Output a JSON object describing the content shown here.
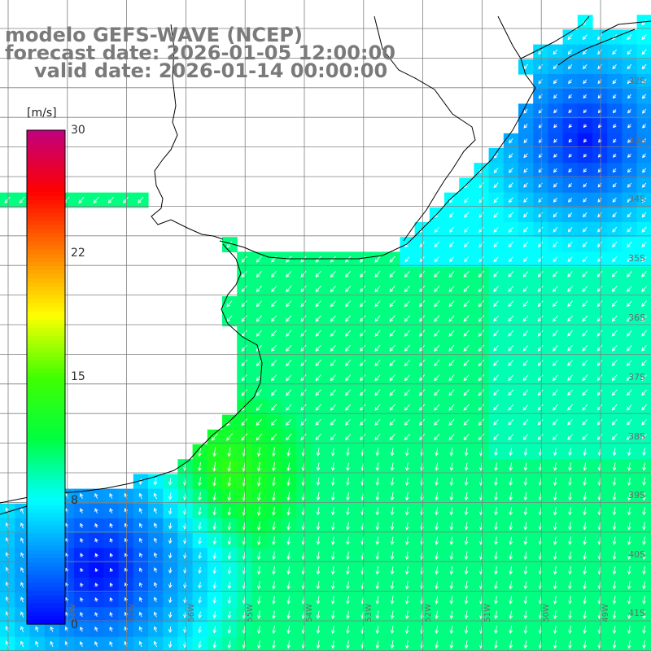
{
  "title": {
    "line1": "modelo GEFS-WAVE (NCEP)",
    "line2": "forecast date: 2026-01-05 12:00:00",
    "line3": "valid date: 2026-01-14 00:00:00"
  },
  "colorbar": {
    "unit": "[m/s]",
    "ticks": [
      "30",
      "22",
      "15",
      "8",
      "0"
    ],
    "tick_values": [
      30,
      22,
      15,
      8,
      0
    ],
    "colors": [
      "#0000ff",
      "#0080ff",
      "#00ffff",
      "#00ff40",
      "#40ff00",
      "#ffff00",
      "#ff8000",
      "#ff0000",
      "#c00080"
    ]
  },
  "lat_labels": [
    "32S",
    "33S",
    "34S",
    "35S",
    "36S",
    "37S",
    "38S",
    "39S",
    "40S",
    "41S"
  ],
  "lon_labels": [
    "58W",
    "57W",
    "56W",
    "55W",
    "54W",
    "53W",
    "52W",
    "51W",
    "50W",
    "49W"
  ],
  "map": {
    "land_color": "#ffffff",
    "coast_color": "#000000",
    "grid_color": "#808080",
    "arrow_color": "#ffffff"
  }
}
